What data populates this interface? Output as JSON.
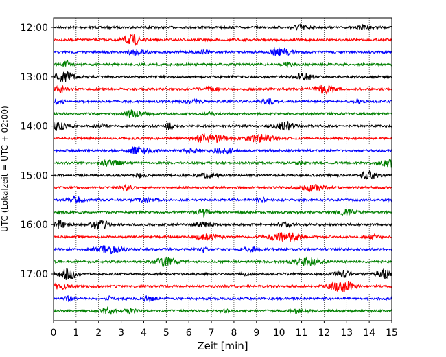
{
  "chart_data": {
    "type": "line",
    "title": "",
    "xlabel": "Zeit  [min]",
    "ylabel": "UTC (Lokalzeit = UTC + 02:00)",
    "xlim": [
      0,
      15
    ],
    "x_ticks": [
      "0",
      "1",
      "2",
      "3",
      "4",
      "5",
      "6",
      "7",
      "8",
      "9",
      "10",
      "11",
      "12",
      "13",
      "14",
      "15"
    ],
    "y_ticks": [
      "12:00",
      "13:00",
      "14:00",
      "15:00",
      "16:00",
      "17:00"
    ],
    "grid": "vertical dotted lines at each minute",
    "trace_interval_minutes": 15,
    "trace_start": "12:00",
    "trace_count": 24,
    "colors_cycle": [
      "#000000",
      "#ff0000",
      "#0000ff",
      "#008000"
    ],
    "series": [
      {
        "start": "12:00",
        "color": "#000000"
      },
      {
        "start": "12:15",
        "color": "#ff0000"
      },
      {
        "start": "12:30",
        "color": "#0000ff"
      },
      {
        "start": "12:45",
        "color": "#008000"
      },
      {
        "start": "13:00",
        "color": "#000000"
      },
      {
        "start": "13:15",
        "color": "#ff0000"
      },
      {
        "start": "13:30",
        "color": "#0000ff"
      },
      {
        "start": "13:45",
        "color": "#008000"
      },
      {
        "start": "14:00",
        "color": "#000000"
      },
      {
        "start": "14:15",
        "color": "#ff0000"
      },
      {
        "start": "14:30",
        "color": "#0000ff"
      },
      {
        "start": "14:45",
        "color": "#008000"
      },
      {
        "start": "15:00",
        "color": "#000000"
      },
      {
        "start": "15:15",
        "color": "#ff0000"
      },
      {
        "start": "15:30",
        "color": "#0000ff"
      },
      {
        "start": "15:45",
        "color": "#008000"
      },
      {
        "start": "16:00",
        "color": "#000000"
      },
      {
        "start": "16:15",
        "color": "#ff0000"
      },
      {
        "start": "16:30",
        "color": "#0000ff"
      },
      {
        "start": "16:45",
        "color": "#008000"
      },
      {
        "start": "17:00",
        "color": "#000000"
      },
      {
        "start": "17:15",
        "color": "#ff0000"
      },
      {
        "start": "17:30",
        "color": "#0000ff"
      },
      {
        "start": "17:45",
        "color": "#008000"
      }
    ]
  }
}
